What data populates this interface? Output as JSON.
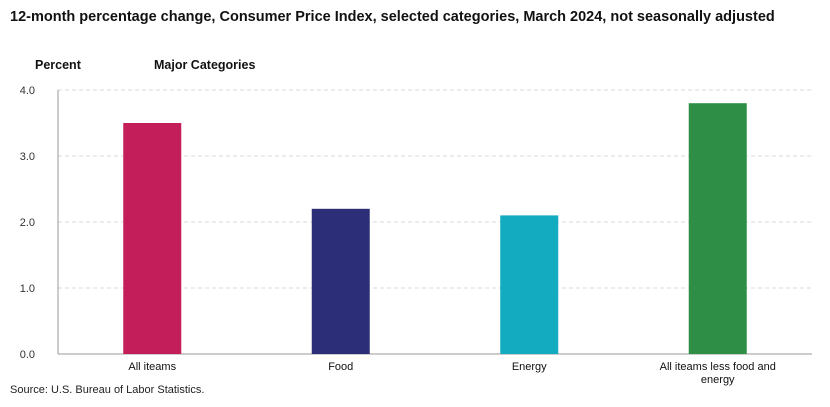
{
  "title": "12-month percentage change, Consumer Price Index, selected categories, March 2024, not seasonally adjusted",
  "ylabel": "Percent",
  "group_label": "Major Categories",
  "source": "Source: U.S. Bureau of Labor Statistics.",
  "chart_data": {
    "type": "bar",
    "title": "12-month percentage change, Consumer Price Index, selected categories, March 2024, not seasonally adjusted",
    "xlabel": "Major Categories",
    "ylabel": "Percent",
    "ylim": [
      0,
      4
    ],
    "yticks": [
      "0.0",
      "1.0",
      "2.0",
      "3.0",
      "4.0"
    ],
    "categories": [
      [
        "All iteams"
      ],
      [
        "Food"
      ],
      [
        "Energy"
      ],
      [
        "All iteams less food and",
        "energy"
      ]
    ],
    "values": [
      3.5,
      2.2,
      2.1,
      3.8
    ],
    "colors": [
      "#c41e5a",
      "#2d2e78",
      "#12abc0",
      "#2e8e45"
    ],
    "grid": true,
    "legend": "none"
  }
}
